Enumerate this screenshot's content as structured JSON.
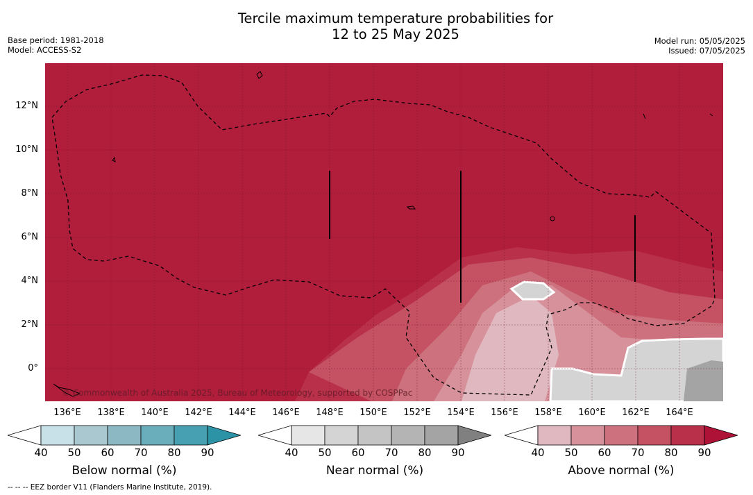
{
  "header": {
    "title_line1": "Tercile maximum temperature probabilities for",
    "title_line2": "12 to 25 May 2025",
    "base_period": "Base period: 1981-2018",
    "model": "Model: ACCESS-S2",
    "model_run": "Model run: 05/05/2025",
    "issued": "Issued: 07/05/2025"
  },
  "map": {
    "lat_labels": [
      "12°N",
      "10°N",
      "8°N",
      "6°N",
      "4°N",
      "2°N",
      "0°"
    ],
    "lon_labels": [
      "136°E",
      "138°E",
      "140°E",
      "142°E",
      "144°E",
      "146°E",
      "148°E",
      "150°E",
      "152°E",
      "154°E",
      "156°E",
      "158°E",
      "160°E",
      "162°E",
      "164°E"
    ],
    "copyright": "© Commonwealth of Australia 2025, Bureau of Meteorology, supported by COSPPac",
    "colors": {
      "above_90": "#b11e3c",
      "land_outline": "#000000",
      "eez_border": "#000000"
    }
  },
  "legends": [
    {
      "title": "Below normal (%)",
      "ticks": [
        "40",
        "50",
        "60",
        "70",
        "80",
        "90"
      ],
      "colors": [
        "#ffffff",
        "#c8e1e8",
        "#a9c8cf",
        "#8bb8c3",
        "#6aadbb",
        "#46a0b1",
        "#2c93a7"
      ]
    },
    {
      "title": "Near normal (%)",
      "ticks": [
        "40",
        "50",
        "60",
        "70",
        "80",
        "90"
      ],
      "colors": [
        "#ffffff",
        "#e6e6e6",
        "#d4d4d4",
        "#c4c4c4",
        "#b4b4b4",
        "#a4a4a4",
        "#808080"
      ]
    },
    {
      "title": "Above normal (%)",
      "ticks": [
        "40",
        "50",
        "60",
        "70",
        "80",
        "90"
      ],
      "colors": [
        "#ffffff",
        "#e0b8bf",
        "#d6919b",
        "#cc717d",
        "#c45262",
        "#b9304a",
        "#ae1236"
      ]
    }
  ],
  "footnote": "--  --  -- EEZ border V11 (Flanders Marine Institute, 2019)."
}
